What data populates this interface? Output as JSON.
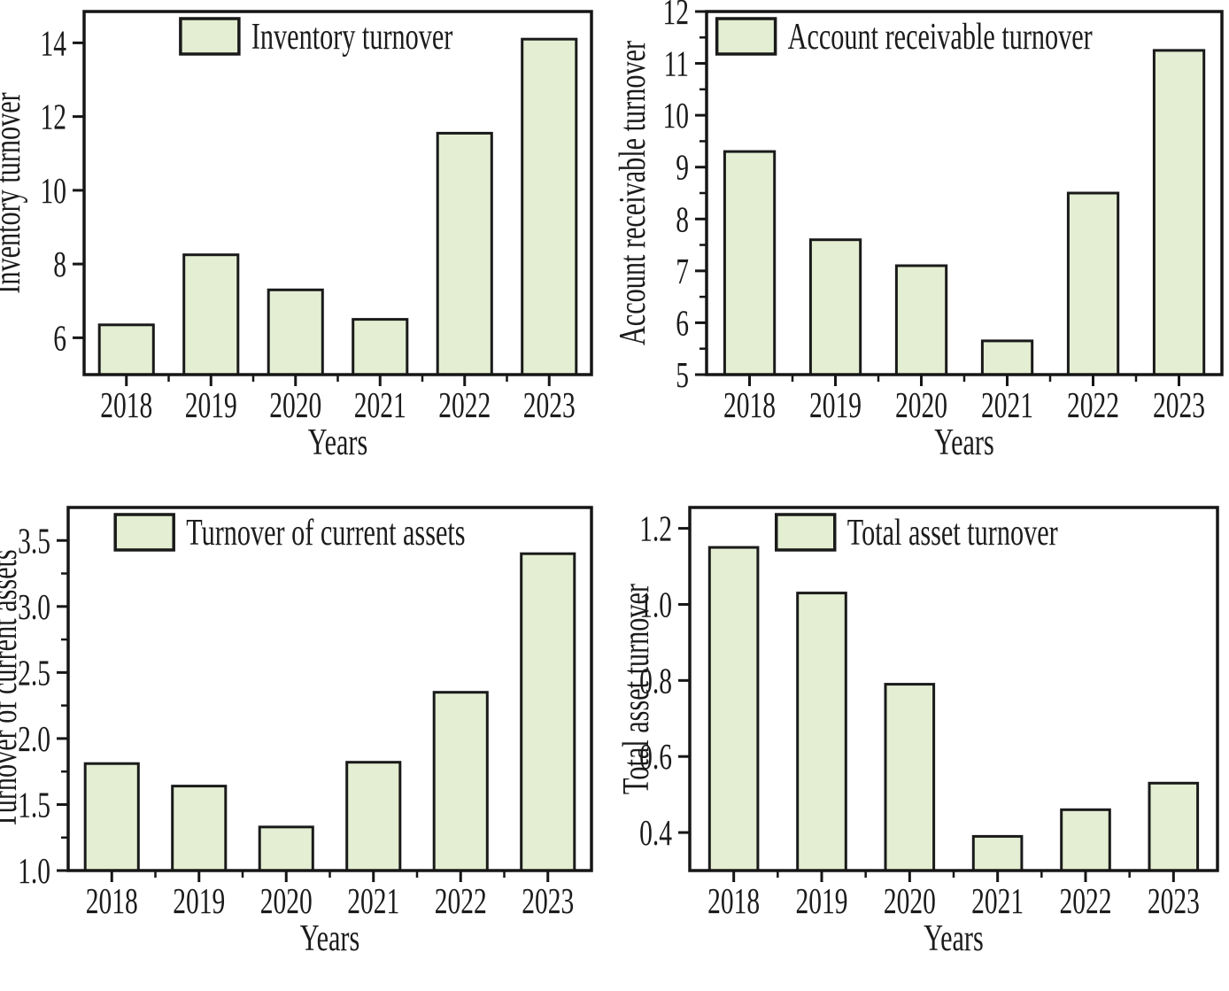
{
  "figure": {
    "kind": "2x2 grid of bar charts",
    "background": "#ffffff"
  },
  "colors": {
    "bar_fill": "#e3eed2",
    "bar_border": "#1a1a1a",
    "axis_line": "#161616",
    "text": "#1b1b1b"
  },
  "chart_data": [
    {
      "id": "inventory-turnover",
      "type": "bar",
      "legend_label": "Inventory turnover",
      "ylabel": "Inventory turnover",
      "xlabel": "Years",
      "categories": [
        "2018",
        "2019",
        "2020",
        "2021",
        "2022",
        "2023"
      ],
      "values": [
        6.35,
        8.25,
        7.3,
        6.5,
        11.55,
        14.1
      ],
      "ylim": [
        5.0,
        14.85
      ],
      "yticks": [
        6,
        8,
        10,
        12,
        14
      ],
      "ytick_labels": [
        "6",
        "8",
        "10",
        "12",
        "14"
      ],
      "grid": false,
      "legend_position": "inside-top"
    },
    {
      "id": "account-receivable-turnover",
      "type": "bar",
      "legend_label": "Account receivable turnover",
      "ylabel": "Account receivable turnover",
      "xlabel": "Years",
      "categories": [
        "2018",
        "2019",
        "2020",
        "2021",
        "2022",
        "2023"
      ],
      "values": [
        9.3,
        7.6,
        7.1,
        5.65,
        8.5,
        11.25
      ],
      "ylim": [
        5.0,
        12.0
      ],
      "yticks": [
        5,
        6,
        7,
        8,
        9,
        10,
        11,
        12
      ],
      "ytick_labels": [
        "5",
        "6",
        "7",
        "8",
        "9",
        "10",
        "11",
        "12"
      ],
      "grid": false,
      "legend_position": "inside-top"
    },
    {
      "id": "turnover-of-current-assets",
      "type": "bar",
      "legend_label": "Turnover of current assets",
      "ylabel": "Turnover of current assets",
      "xlabel": "Years",
      "categories": [
        "2018",
        "2019",
        "2020",
        "2021",
        "2022",
        "2023"
      ],
      "values": [
        1.81,
        1.64,
        1.33,
        1.82,
        2.35,
        3.4
      ],
      "ylim": [
        1.0,
        3.75
      ],
      "yticks": [
        1.0,
        1.5,
        2.0,
        2.5,
        3.0,
        3.5
      ],
      "ytick_labels": [
        "1.0",
        "1.5",
        "2.0",
        "2.5",
        "3.0",
        "3.5"
      ],
      "grid": false,
      "legend_position": "inside-top"
    },
    {
      "id": "total-asset-turnover",
      "type": "bar",
      "legend_label": "Total asset turnover",
      "ylabel": "Total asset turnover",
      "xlabel": "Years",
      "categories": [
        "2018",
        "2019",
        "2020",
        "2021",
        "2022",
        "2023"
      ],
      "values": [
        1.15,
        1.03,
        0.79,
        0.39,
        0.46,
        0.53
      ],
      "ylim": [
        0.3,
        1.255
      ],
      "yticks": [
        0.4,
        0.6,
        0.8,
        1.0,
        1.2
      ],
      "ytick_labels": [
        "0.4",
        "0.6",
        "0.8",
        "1.0",
        "1.2"
      ],
      "grid": false,
      "legend_position": "inside-top"
    }
  ]
}
